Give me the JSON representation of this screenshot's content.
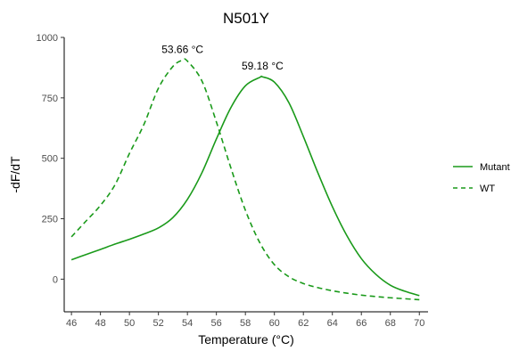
{
  "chart_data": {
    "type": "line",
    "title": "N501Y",
    "xlabel": "Temperature (°C)",
    "ylabel": "-dF/dT",
    "xlim": [
      45.5,
      70.6
    ],
    "ylim": [
      -135,
      1000
    ],
    "xticks": [
      46,
      48,
      50,
      52,
      54,
      56,
      58,
      60,
      62,
      64,
      66,
      68,
      70
    ],
    "yticks": [
      0,
      250,
      500,
      750,
      1000
    ],
    "grid": false,
    "legend_position": "right",
    "series": [
      {
        "name": "Mutant",
        "line_style": "solid",
        "color": "#1a9a1a",
        "x": [
          46,
          47,
          48,
          49,
          50,
          51,
          52,
          53,
          54,
          55,
          56,
          57,
          58,
          59,
          59.18,
          60,
          61,
          62,
          63,
          64,
          65,
          66,
          67,
          68,
          69,
          70
        ],
        "y": [
          80,
          102,
          123,
          145,
          165,
          187,
          212,
          255,
          330,
          440,
          580,
          710,
          800,
          835,
          837,
          815,
          730,
          590,
          440,
          300,
          180,
          85,
          20,
          -25,
          -50,
          -68
        ]
      },
      {
        "name": "WT",
        "line_style": "dashed",
        "color": "#1a9a1a",
        "x": [
          46,
          47,
          48,
          49,
          50,
          51,
          52,
          53,
          53.66,
          54,
          55,
          56,
          57,
          58,
          59,
          60,
          61,
          62,
          63,
          64,
          65,
          66,
          67,
          68,
          69,
          70
        ],
        "y": [
          175,
          240,
          305,
          390,
          520,
          640,
          790,
          880,
          906,
          902,
          820,
          650,
          460,
          285,
          150,
          60,
          10,
          -18,
          -35,
          -48,
          -58,
          -66,
          -72,
          -77,
          -81,
          -85
        ]
      }
    ],
    "annotations": [
      {
        "text": "53.66 °C",
        "x": 53.66,
        "y": 906
      },
      {
        "text": "59.18 °C",
        "x": 59.18,
        "y": 837
      }
    ]
  }
}
